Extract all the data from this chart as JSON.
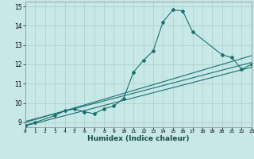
{
  "xlabel": "Humidex (Indice chaleur)",
  "bg_color": "#c8e8e8",
  "grid_color": "#aacccc",
  "line_color": "#1a7070",
  "xlim": [
    0,
    23
  ],
  "ylim": [
    8.75,
    15.25
  ],
  "yticks": [
    9,
    10,
    11,
    12,
    13,
    14,
    15
  ],
  "xticks": [
    0,
    1,
    2,
    3,
    4,
    5,
    6,
    7,
    8,
    9,
    10,
    11,
    12,
    13,
    14,
    15,
    16,
    17,
    18,
    19,
    20,
    21,
    22,
    23
  ],
  "line1_x": [
    0,
    1,
    3,
    4,
    5,
    6,
    7,
    8,
    9,
    10,
    11,
    12,
    13,
    14,
    15,
    16,
    17,
    20,
    21,
    22,
    23
  ],
  "line1_y": [
    8.85,
    9.0,
    9.35,
    9.6,
    9.7,
    9.55,
    9.45,
    9.7,
    9.85,
    10.25,
    11.6,
    12.2,
    12.7,
    14.2,
    14.82,
    14.77,
    13.7,
    12.5,
    12.35,
    11.75,
    12.0
  ],
  "line2_x": [
    0,
    23
  ],
  "line2_y": [
    9.0,
    12.45
  ],
  "line3_x": [
    0,
    23
  ],
  "line3_y": [
    8.82,
    11.85
  ],
  "line4_x": [
    0,
    23
  ],
  "line4_y": [
    9.05,
    12.1
  ]
}
